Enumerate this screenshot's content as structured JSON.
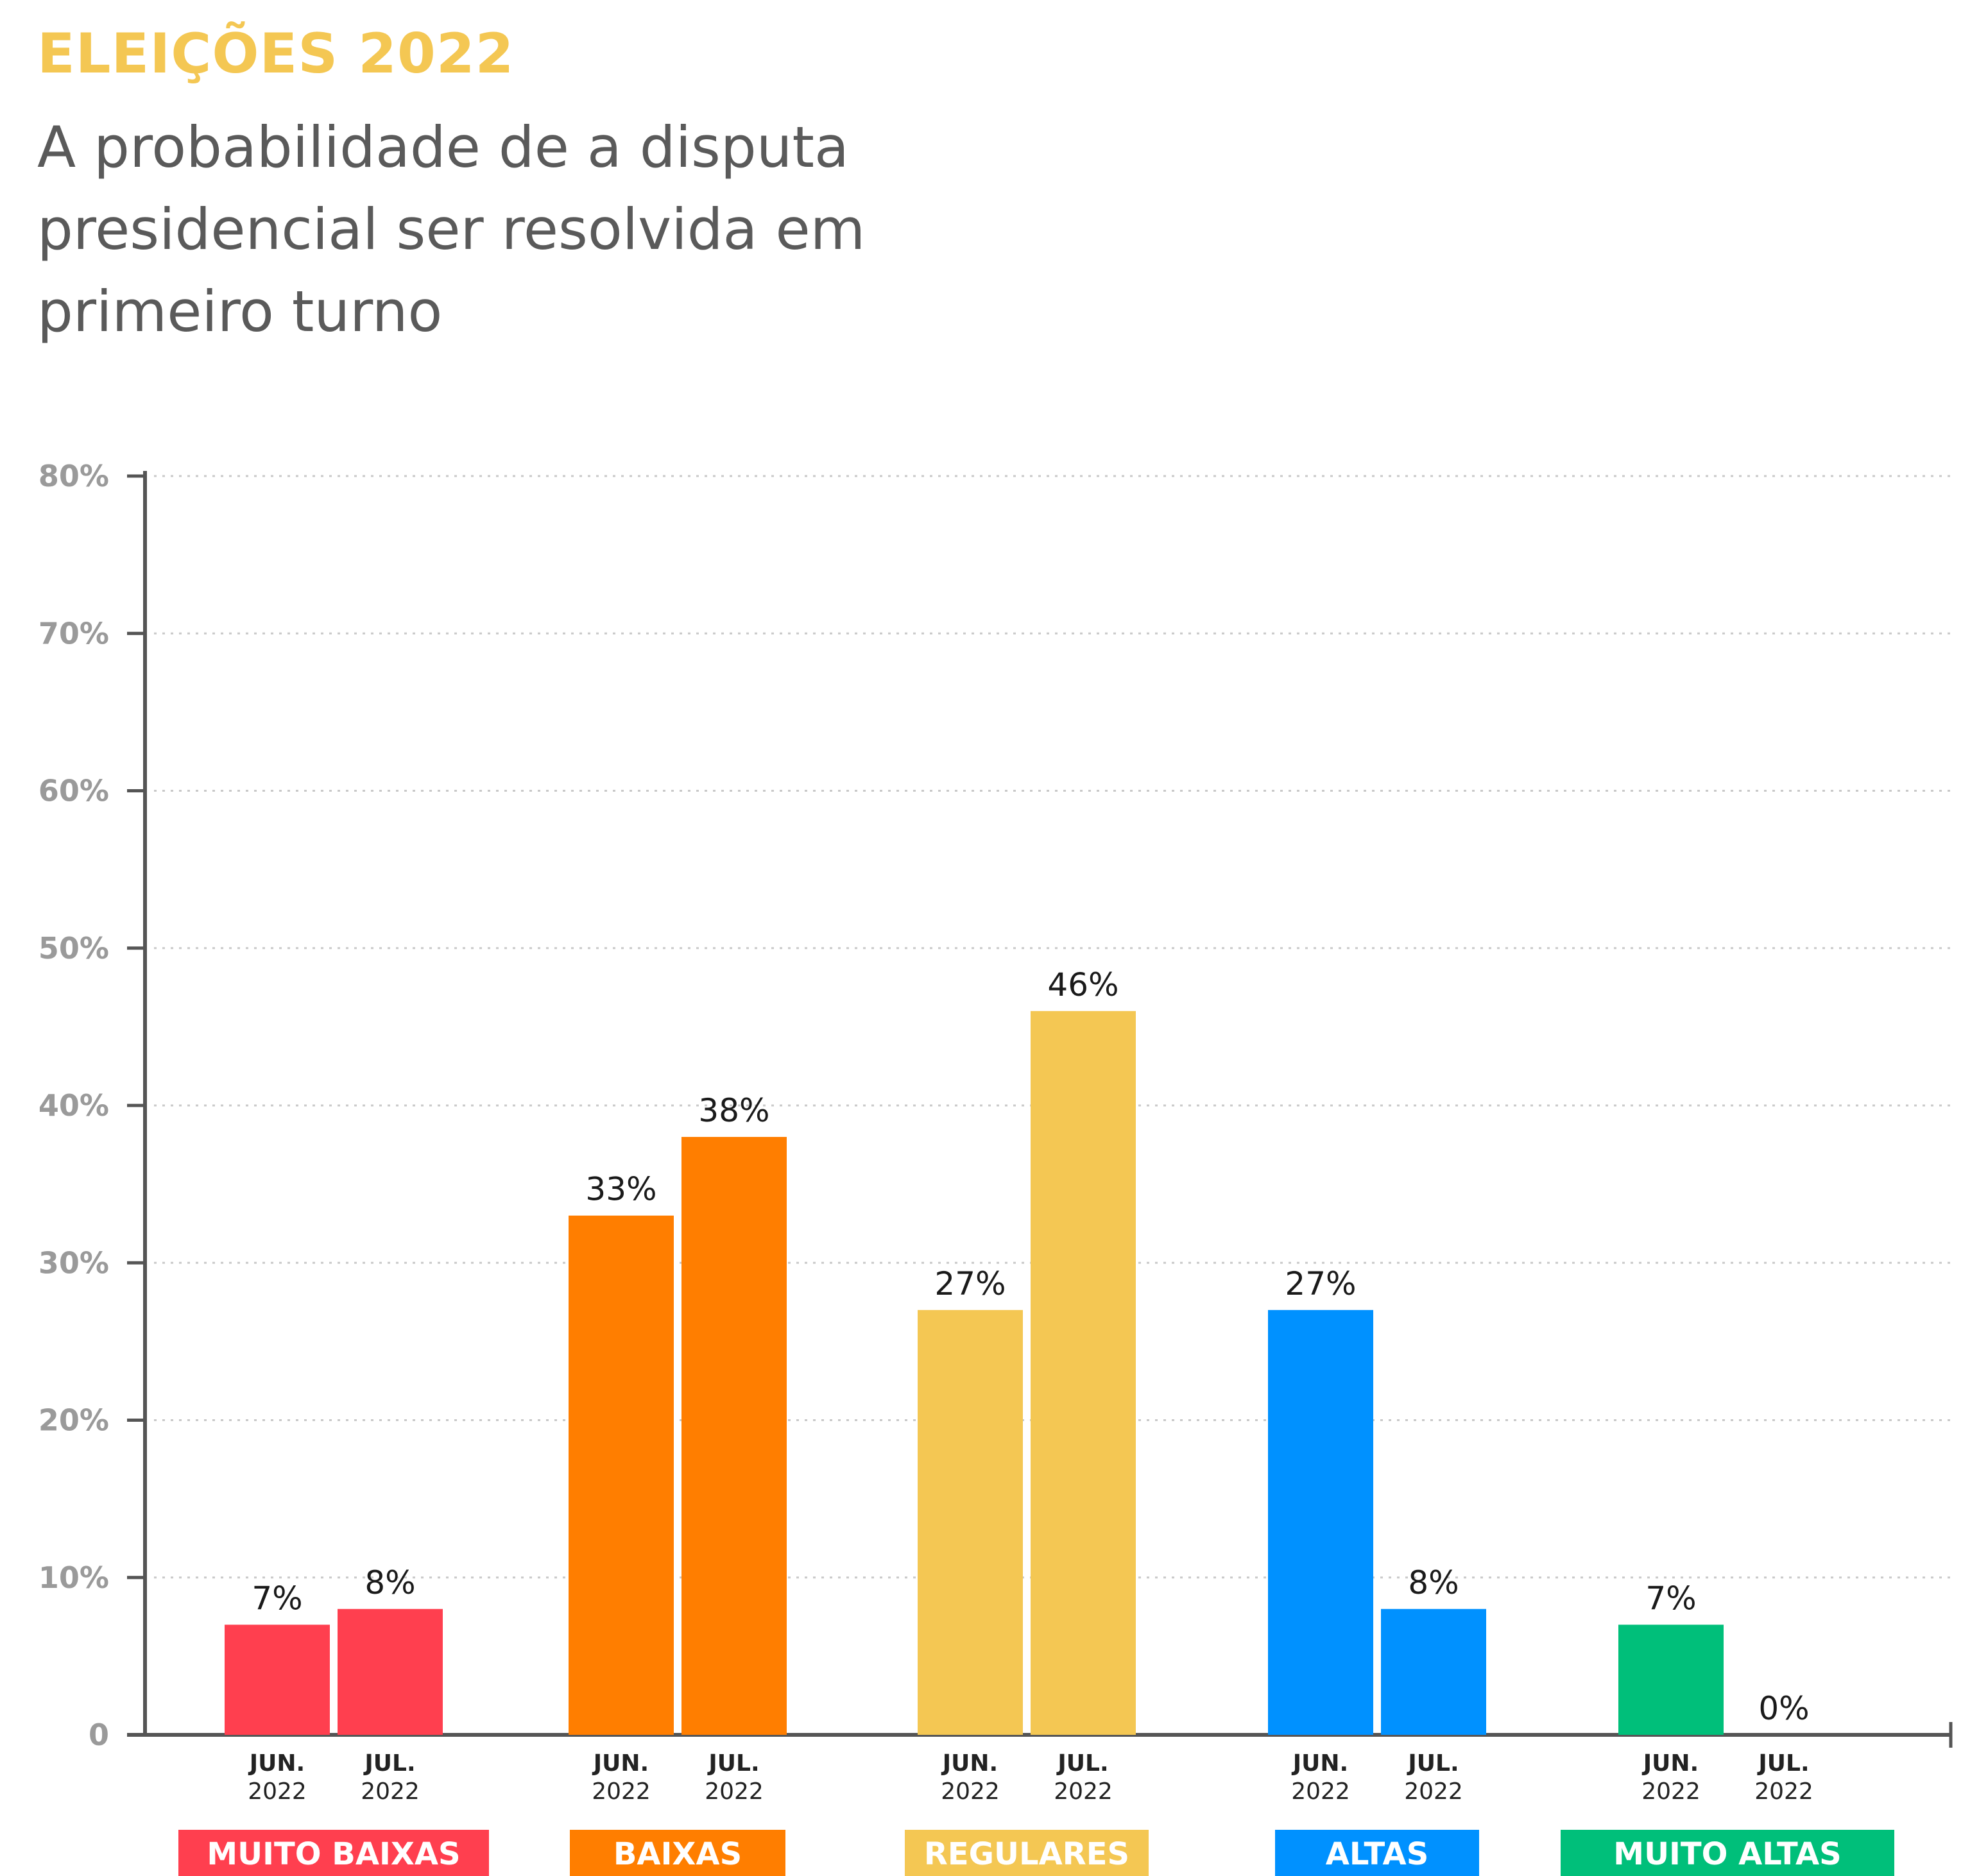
{
  "eyebrow": "ELEIÇÕES 2022",
  "title": "A probabilidade de a disputa presidencial ser resolvida em primeiro turno",
  "chart_data": {
    "type": "bar",
    "title": "A probabilidade de a disputa presidencial ser resolvida em primeiro turno",
    "xlabel": "",
    "ylabel": "",
    "ylim": [
      0,
      80
    ],
    "y_ticks": [
      "0",
      "10%",
      "20%",
      "30%",
      "40%",
      "50%",
      "60%",
      "70%",
      "80%"
    ],
    "y_tick_values": [
      0,
      10,
      20,
      30,
      40,
      50,
      60,
      70,
      80
    ],
    "grid": true,
    "series_periods": [
      {
        "month": "JUN.",
        "year": "2022"
      },
      {
        "month": "JUL.",
        "year": "2022"
      }
    ],
    "groups": [
      {
        "category": "MUITO BAIXAS",
        "color": "#FF3F4F",
        "values": [
          7,
          8
        ],
        "labels": [
          "7%",
          "8%"
        ]
      },
      {
        "category": "BAIXAS",
        "color": "#FF7E00",
        "values": [
          33,
          38
        ],
        "labels": [
          "33%",
          "38%"
        ]
      },
      {
        "category": "REGULARES",
        "color": "#F4C753",
        "values": [
          27,
          46
        ],
        "labels": [
          "27%",
          "46%"
        ]
      },
      {
        "category": "ALTAS",
        "color": "#0091FF",
        "values": [
          27,
          8
        ],
        "labels": [
          "27%",
          "8%"
        ]
      },
      {
        "category": "MUITO ALTAS",
        "color": "#00BF7A",
        "values": [
          7,
          0
        ],
        "labels": [
          "7%",
          "0%"
        ]
      }
    ]
  }
}
